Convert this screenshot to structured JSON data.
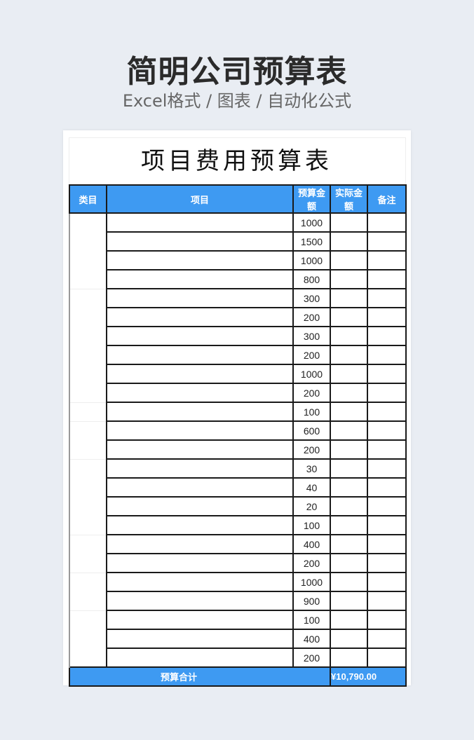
{
  "hero": {
    "title": "简明公司预算表",
    "subtitle": "Excel格式 / 图表 / 自动化公式"
  },
  "sheet": {
    "title": "项目费用预算表",
    "headers": [
      "类目",
      "项目",
      "预算金额",
      "实际金额",
      "备注"
    ],
    "groups": [
      {
        "category": "",
        "rows": [
          1000,
          1500,
          1000,
          800
        ]
      },
      {
        "category": "",
        "rows": [
          300,
          200,
          300,
          200,
          1000,
          200
        ]
      },
      {
        "category": "",
        "rows": [
          100
        ]
      },
      {
        "category": "",
        "rows": [
          600,
          200
        ]
      },
      {
        "category": "",
        "rows": [
          30,
          40,
          20,
          100
        ]
      },
      {
        "category": "",
        "rows": [
          400,
          200
        ]
      },
      {
        "category": "",
        "rows": [
          1000,
          900
        ]
      },
      {
        "category": "",
        "rows": [
          100,
          400,
          200
        ]
      }
    ],
    "total_label": "预算合计",
    "total_value": "¥10,790.00"
  },
  "colors": {
    "header": "#3e9af2",
    "background": "#e9edf3"
  }
}
